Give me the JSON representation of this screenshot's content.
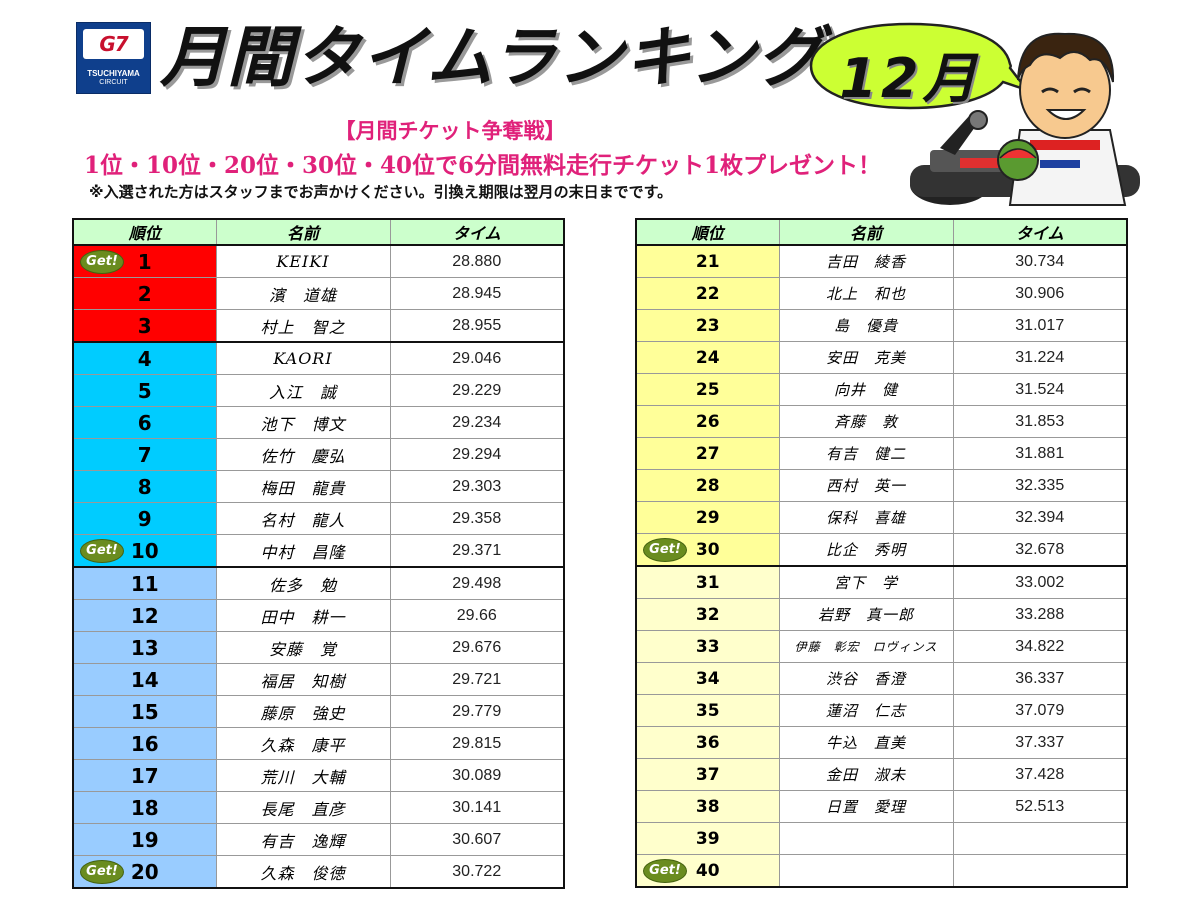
{
  "logo": {
    "mark": "G7",
    "name": "TSUCHIYAMA",
    "sub": "CIRCUIT"
  },
  "title": "月間タイムランキング",
  "month": "12月",
  "campaign": "【月間チケット争奪戦】",
  "prize": "1位・10位・20位・30位・40位で6分間無料走行チケット1枚プレゼント！",
  "note": "※入選された方はスタッフまでお声かけください。引換え期限は翌月の末日までです。",
  "badge": "Get!",
  "headers": {
    "rank": "順位",
    "name": "名前",
    "time": "タイム"
  },
  "left": [
    {
      "rank": "1",
      "name": "KEIKI",
      "time": "28.880"
    },
    {
      "rank": "2",
      "name": "濱　道雄",
      "time": "28.945"
    },
    {
      "rank": "3",
      "name": "村上　智之",
      "time": "28.955"
    },
    {
      "rank": "4",
      "name": "KAORI",
      "time": "29.046"
    },
    {
      "rank": "5",
      "name": "入江　誠",
      "time": "29.229"
    },
    {
      "rank": "6",
      "name": "池下　博文",
      "time": "29.234"
    },
    {
      "rank": "7",
      "name": "佐竹　慶弘",
      "time": "29.294"
    },
    {
      "rank": "8",
      "name": "梅田　龍貴",
      "time": "29.303"
    },
    {
      "rank": "9",
      "name": "名村　龍人",
      "time": "29.358"
    },
    {
      "rank": "10",
      "name": "中村　昌隆",
      "time": "29.371"
    },
    {
      "rank": "11",
      "name": "佐多　勉",
      "time": "29.498"
    },
    {
      "rank": "12",
      "name": "田中　耕一",
      "time": "29.66"
    },
    {
      "rank": "13",
      "name": "安藤　覚",
      "time": "29.676"
    },
    {
      "rank": "14",
      "name": "福居　知樹",
      "time": "29.721"
    },
    {
      "rank": "15",
      "name": "藤原　強史",
      "time": "29.779"
    },
    {
      "rank": "16",
      "name": "久森　康平",
      "time": "29.815"
    },
    {
      "rank": "17",
      "name": "荒川　大輔",
      "time": "30.089"
    },
    {
      "rank": "18",
      "name": "長尾　直彦",
      "time": "30.141"
    },
    {
      "rank": "19",
      "name": "有吉　逸輝",
      "time": "30.607"
    },
    {
      "rank": "20",
      "name": "久森　俊徳",
      "time": "30.722"
    }
  ],
  "right": [
    {
      "rank": "21",
      "name": "吉田　綾香",
      "time": "30.734"
    },
    {
      "rank": "22",
      "name": "北上　和也",
      "time": "30.906"
    },
    {
      "rank": "23",
      "name": "島　優貴",
      "time": "31.017"
    },
    {
      "rank": "24",
      "name": "安田　克美",
      "time": "31.224"
    },
    {
      "rank": "25",
      "name": "向井　健",
      "time": "31.524"
    },
    {
      "rank": "26",
      "name": "斉藤　敦",
      "time": "31.853"
    },
    {
      "rank": "27",
      "name": "有吉　健二",
      "time": "31.881"
    },
    {
      "rank": "28",
      "name": "西村　英一",
      "time": "32.335"
    },
    {
      "rank": "29",
      "name": "保科　喜雄",
      "time": "32.394"
    },
    {
      "rank": "30",
      "name": "比企　秀明",
      "time": "32.678"
    },
    {
      "rank": "31",
      "name": "宮下　学",
      "time": "33.002"
    },
    {
      "rank": "32",
      "name": "岩野　真一郎",
      "time": "33.288"
    },
    {
      "rank": "33",
      "name": "伊藤　彰宏　ロヴィンス",
      "time": "34.822"
    },
    {
      "rank": "34",
      "name": "渋谷　香澄",
      "time": "36.337"
    },
    {
      "rank": "35",
      "name": "蓮沼　仁志",
      "time": "37.079"
    },
    {
      "rank": "36",
      "name": "牛込　直美",
      "time": "37.337"
    },
    {
      "rank": "37",
      "name": "金田　淑未",
      "time": "37.428"
    },
    {
      "rank": "38",
      "name": "日置　愛理",
      "time": "52.513"
    },
    {
      "rank": "39",
      "name": "",
      "time": ""
    },
    {
      "rank": "40",
      "name": "",
      "time": ""
    }
  ]
}
